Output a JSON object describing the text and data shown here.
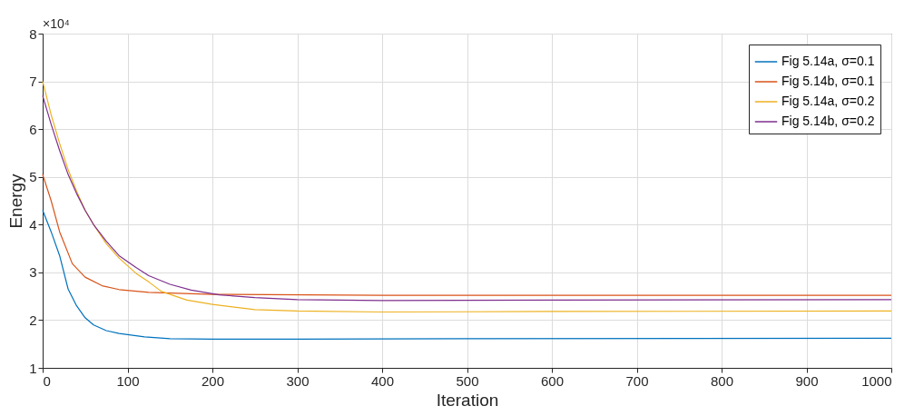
{
  "chart_data": {
    "type": "line",
    "xlabel": "Iteration",
    "ylabel": "Energy",
    "annotations": [
      "×10⁴"
    ],
    "xlim": [
      0,
      1000
    ],
    "xticks": [
      0,
      100,
      200,
      300,
      400,
      500,
      600,
      700,
      800,
      900,
      1000
    ],
    "ylim": [
      1,
      8
    ],
    "yticks": [
      1,
      2,
      3,
      4,
      5,
      6,
      7,
      8
    ],
    "grid": true,
    "legend": "top right",
    "series": [
      {
        "name": "Fig 5.14a, σ=0.1",
        "color": "#0072bd",
        "x": [
          0,
          10,
          20,
          30,
          40,
          50,
          60,
          75,
          90,
          120,
          150,
          200,
          300,
          500,
          1000
        ],
        "values": [
          4.3,
          3.85,
          3.35,
          2.65,
          2.3,
          2.05,
          1.9,
          1.78,
          1.72,
          1.65,
          1.61,
          1.6,
          1.6,
          1.61,
          1.62
        ]
      },
      {
        "name": "Fig 5.14b, σ=0.1",
        "color": "#d95319",
        "x": [
          0,
          10,
          20,
          35,
          50,
          70,
          90,
          125,
          200,
          400,
          1000
        ],
        "values": [
          5.05,
          4.5,
          3.85,
          3.18,
          2.9,
          2.72,
          2.64,
          2.58,
          2.54,
          2.52,
          2.52
        ]
      },
      {
        "name": "Fig 5.14a, σ=0.2",
        "color": "#edb120",
        "x": [
          0,
          10,
          20,
          30,
          40,
          50,
          60,
          75,
          90,
          110,
          125,
          140,
          170,
          200,
          250,
          300,
          400,
          600,
          1000
        ],
        "values": [
          7.0,
          6.3,
          5.7,
          5.15,
          4.7,
          4.3,
          4.0,
          3.6,
          3.3,
          2.98,
          2.8,
          2.6,
          2.42,
          2.33,
          2.22,
          2.19,
          2.17,
          2.18,
          2.19
        ]
      },
      {
        "name": "Fig 5.14b, σ=0.2",
        "color": "#7e2f8e",
        "x": [
          0,
          10,
          20,
          30,
          40,
          50,
          60,
          75,
          90,
          110,
          125,
          150,
          175,
          208,
          250,
          300,
          400,
          600,
          1000
        ],
        "values": [
          6.7,
          6.1,
          5.55,
          5.05,
          4.65,
          4.3,
          4.0,
          3.65,
          3.35,
          3.1,
          2.93,
          2.75,
          2.63,
          2.53,
          2.47,
          2.43,
          2.41,
          2.42,
          2.43
        ]
      }
    ]
  }
}
